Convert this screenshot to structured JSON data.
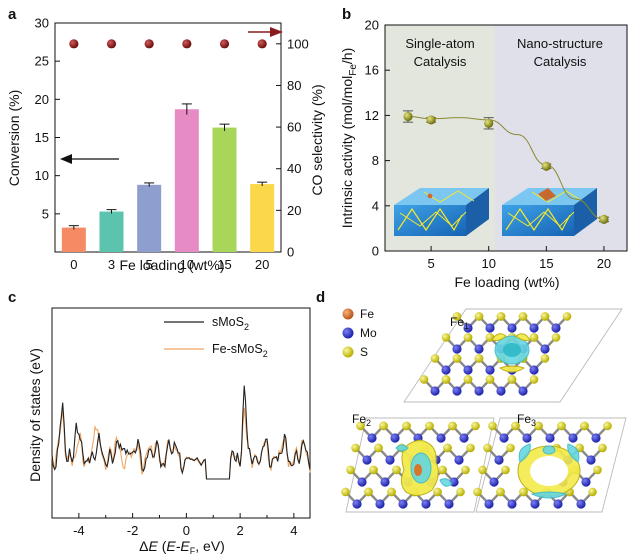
{
  "figure": {
    "panel_labels": [
      "a",
      "b",
      "c",
      "d"
    ]
  },
  "chart_data": [
    {
      "panel": "a",
      "type": "bar",
      "categories": [
        "0",
        "3",
        "5",
        "10",
        "15",
        "20"
      ],
      "series": [
        {
          "axis": "left",
          "values": [
            3.2,
            5.3,
            8.8,
            18.7,
            16.3,
            8.9
          ],
          "errors": [
            0.25,
            0.25,
            0.25,
            0.7,
            0.45,
            0.25
          ],
          "colors": [
            "#f58a65",
            "#5cc4ae",
            "#8e9fcf",
            "#e68bc3",
            "#a8d65b",
            "#fbd84a"
          ]
        },
        {
          "axis": "right",
          "type": "scatter",
          "values": [
            100,
            100,
            100,
            100,
            100,
            100
          ],
          "color": "#8b1a1a"
        }
      ],
      "xlabel": "Fe loading (wt%)",
      "ylabel": "Conversion (%)",
      "y2label": "CO selectivity (%)",
      "ylim": [
        0,
        30
      ],
      "y2lim": [
        0,
        110
      ],
      "yticks": [
        "5",
        "10",
        "15",
        "20",
        "25",
        "30"
      ],
      "y2ticks": [
        "0",
        "20",
        "40",
        "60",
        "80",
        "100"
      ],
      "grid": false
    },
    {
      "panel": "b",
      "type": "scatter",
      "x": [
        3,
        5,
        10,
        15,
        20
      ],
      "values": [
        11.9,
        11.6,
        11.3,
        7.5,
        2.8
      ],
      "errors": [
        0.5,
        0.2,
        0.5,
        0.2,
        0.2
      ],
      "color": "#9a9a2c",
      "xlabel": "Fe loading (wt%)",
      "ylabel_main": "Intrinsic activity (mol/mol",
      "ylabel_sub": "Fe",
      "ylabel_end": "/h)",
      "xlim": [
        1,
        22
      ],
      "ylim": [
        0,
        20
      ],
      "xticks": [
        "5",
        "10",
        "15",
        "20"
      ],
      "yticks": [
        "0",
        "4",
        "8",
        "12",
        "16",
        "20"
      ],
      "regions": [
        {
          "line1": "Single-atom",
          "line2": "Catalysis",
          "color": "#e2e5dc"
        },
        {
          "line1": "Nano-structure",
          "line2": "Catalysis",
          "color": "#dfe0ea"
        }
      ],
      "grid": false
    },
    {
      "panel": "c",
      "type": "line",
      "xlabel_delta": "Δ",
      "xlabel_E": "E",
      "xlabel_mid": " (",
      "xlabel_EEF": "E-E",
      "xlabel_F": "F",
      "xlabel_end": ", eV)",
      "ylabel": "Density of states (eV)",
      "xlim": [
        -5,
        4.6
      ],
      "xticks": [
        "-4",
        "-2",
        "0",
        "2",
        "4"
      ],
      "series": [
        {
          "name_main": "sMoS",
          "name_sub": "2",
          "color": "#222222"
        },
        {
          "name_main": "Fe-sMoS",
          "name_sub": "2",
          "color": "#f0a561"
        }
      ],
      "grid": false
    }
  ],
  "panel_d": {
    "legend": [
      {
        "label": "Fe",
        "color": "#d9742b"
      },
      {
        "label": "Mo",
        "color": "#2b2fc8"
      },
      {
        "label": "S",
        "color": "#d8d11a"
      }
    ],
    "structures": [
      {
        "main": "Fe",
        "sub": "1"
      },
      {
        "main": "Fe",
        "sub": "2"
      },
      {
        "main": "Fe",
        "sub": "3"
      }
    ]
  }
}
